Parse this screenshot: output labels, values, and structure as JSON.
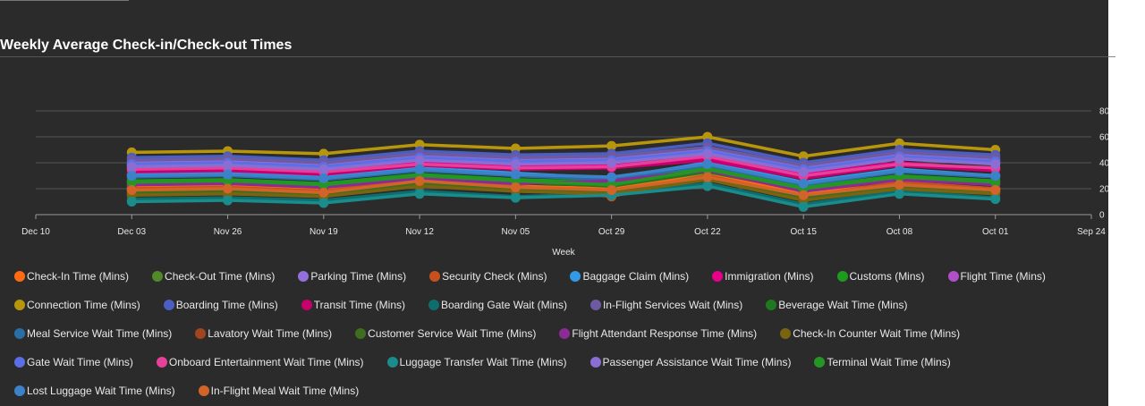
{
  "chart_data": {
    "type": "line",
    "title": "Weekly Average Check-in/Check-out Times",
    "xlabel": "Week",
    "ylabel": "",
    "ylim": [
      0,
      80
    ],
    "yticks": [
      0,
      20,
      40,
      60,
      80
    ],
    "grid": true,
    "legend_position": "bottom",
    "x": [
      "Dec 10",
      "Dec 03",
      "Nov 26",
      "Nov 19",
      "Nov 12",
      "Nov 05",
      "Oct 29",
      "Oct 22",
      "Oct 15",
      "Oct 08",
      "Oct 01",
      "Sep 24"
    ],
    "series": [
      {
        "name": "Check-In Time (Mins)",
        "color": "#ff6a13",
        "values": [
          null,
          22,
          23,
          19,
          26,
          22,
          20,
          31,
          16,
          24,
          20,
          null
        ]
      },
      {
        "name": "Check-Out Time (Mins)",
        "color": "#4f8a2b",
        "values": [
          null,
          18,
          19,
          16,
          25,
          20,
          17,
          30,
          12,
          22,
          18,
          null
        ]
      },
      {
        "name": "Parking Time (Mins)",
        "color": "#9370db",
        "values": [
          null,
          40,
          41,
          38,
          45,
          42,
          43,
          50,
          36,
          46,
          42,
          null
        ]
      },
      {
        "name": "Security Check (Mins)",
        "color": "#c8501e",
        "values": [
          null,
          20,
          21,
          18,
          27,
          22,
          14,
          30,
          14,
          25,
          20,
          null
        ]
      },
      {
        "name": "Baggage Claim (Mins)",
        "color": "#3399e6",
        "values": [
          null,
          31,
          33,
          29,
          36,
          32,
          28,
          40,
          25,
          35,
          30,
          null
        ]
      },
      {
        "name": "Immigration (Mins)",
        "color": "#e6008c",
        "values": [
          null,
          36,
          37,
          34,
          40,
          37,
          38,
          44,
          31,
          40,
          35,
          null
        ]
      },
      {
        "name": "Customs (Mins)",
        "color": "#1e9b1e",
        "values": [
          null,
          26,
          27,
          24,
          31,
          27,
          25,
          36,
          21,
          30,
          26,
          null
        ]
      },
      {
        "name": "Flight Time (Mins)",
        "color": "#b04fc8",
        "values": [
          null,
          38,
          39,
          36,
          43,
          40,
          41,
          48,
          34,
          44,
          40,
          null
        ]
      },
      {
        "name": "Connection Time (Mins)",
        "color": "#b8960c",
        "values": [
          null,
          48,
          49,
          47,
          54,
          51,
          53,
          60,
          45,
          55,
          50,
          null
        ]
      },
      {
        "name": "Boarding Time (Mins)",
        "color": "#4a5fc1",
        "values": [
          null,
          44,
          45,
          42,
          49,
          46,
          47,
          55,
          40,
          50,
          46,
          null
        ]
      },
      {
        "name": "Transit Time (Mins)",
        "color": "#c8006e",
        "values": [
          null,
          33,
          34,
          31,
          38,
          35,
          36,
          42,
          28,
          38,
          34,
          null
        ]
      },
      {
        "name": "Boarding Gate Wait (Mins)",
        "color": "#0e6e6e",
        "values": [
          null,
          12,
          13,
          11,
          18,
          14,
          16,
          24,
          8,
          18,
          13,
          null
        ]
      },
      {
        "name": "In-Flight Services Wait (Mins)",
        "color": "#6e5aa0",
        "values": [
          null,
          42,
          43,
          40,
          47,
          44,
          45,
          52,
          38,
          48,
          44,
          null
        ]
      },
      {
        "name": "Beverage Wait Time (Mins)",
        "color": "#1f7a1f",
        "values": [
          null,
          24,
          25,
          22,
          29,
          25,
          22,
          33,
          19,
          28,
          24,
          null
        ]
      },
      {
        "name": "Meal Service Wait Time (Mins)",
        "color": "#2a6ea6",
        "values": [
          null,
          29,
          30,
          27,
          34,
          30,
          27,
          38,
          23,
          33,
          29,
          null
        ]
      },
      {
        "name": "Lavatory Wait Time (Mins)",
        "color": "#a0461e",
        "values": [
          null,
          16,
          17,
          15,
          23,
          19,
          17,
          28,
          12,
          21,
          17,
          null
        ]
      },
      {
        "name": "Customer Service Wait Time (Mins)",
        "color": "#3f6e1f",
        "values": [
          null,
          17,
          18,
          16,
          24,
          19,
          18,
          29,
          13,
          22,
          18,
          null
        ]
      },
      {
        "name": "Flight Attendant Response Time (Mins)",
        "color": "#8c2a96",
        "values": [
          null,
          23,
          24,
          21,
          28,
          24,
          26,
          34,
          18,
          27,
          23,
          null
        ]
      },
      {
        "name": "Check-In Counter Wait Time (Mins)",
        "color": "#7a6410",
        "values": [
          null,
          15,
          16,
          14,
          22,
          18,
          16,
          27,
          11,
          20,
          16,
          null
        ]
      },
      {
        "name": "Gate Wait Time (Mins)",
        "color": "#5a6ee6",
        "values": [
          null,
          39,
          40,
          37,
          44,
          41,
          42,
          49,
          35,
          45,
          41,
          null
        ]
      },
      {
        "name": "Onboard Entertainment Wait Time (Mins)",
        "color": "#e6409b",
        "values": [
          null,
          35,
          36,
          33,
          39,
          36,
          37,
          45,
          30,
          39,
          36,
          null
        ]
      },
      {
        "name": "Luggage Transfer Wait Time (Mins)",
        "color": "#1a8c8c",
        "values": [
          null,
          10,
          11,
          9,
          16,
          13,
          15,
          22,
          6,
          16,
          12,
          null
        ]
      },
      {
        "name": "Passenger Assistance Wait Time (Mins)",
        "color": "#8a6ed2",
        "values": [
          null,
          37,
          38,
          35,
          42,
          39,
          40,
          47,
          33,
          43,
          39,
          null
        ]
      },
      {
        "name": "Terminal Wait Time (Mins)",
        "color": "#259625",
        "values": [
          null,
          25,
          26,
          23,
          30,
          26,
          23,
          35,
          20,
          29,
          25,
          null
        ]
      },
      {
        "name": "Lost Luggage Wait Time (Mins)",
        "color": "#3c82c8",
        "values": [
          null,
          30,
          31,
          28,
          35,
          31,
          29,
          39,
          24,
          34,
          30,
          null
        ]
      },
      {
        "name": "In-Flight Meal Wait Time (Mins)",
        "color": "#d2642a",
        "values": [
          null,
          19,
          20,
          17,
          26,
          21,
          19,
          29,
          15,
          23,
          19,
          null
        ]
      }
    ]
  }
}
